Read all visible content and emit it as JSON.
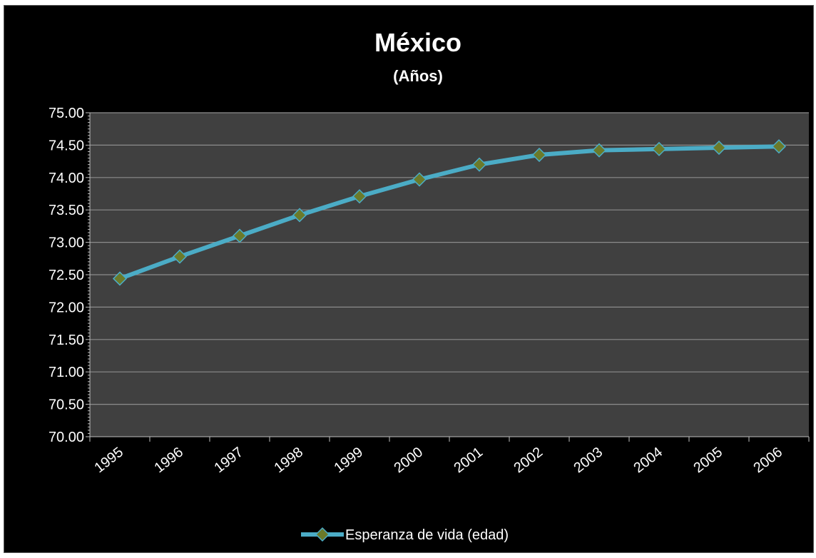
{
  "chart_data": {
    "type": "line",
    "title": "México",
    "subtitle": "(Años)",
    "xlabel": "",
    "ylabel": "",
    "categories": [
      "1995",
      "1996",
      "1997",
      "1998",
      "1999",
      "2000",
      "2001",
      "2002",
      "2003",
      "2004",
      "2005",
      "2006"
    ],
    "series": [
      {
        "name": "Esperanza de vida (edad)",
        "values": [
          72.44,
          72.78,
          73.1,
          73.42,
          73.71,
          73.97,
          74.2,
          74.35,
          74.42,
          74.44,
          74.46,
          74.48
        ],
        "color": "#4bacc6",
        "marker": "diamond",
        "marker_color": "#6b7a2a"
      }
    ],
    "ylim": [
      70.0,
      75.0
    ],
    "y_ticks": [
      "70.00",
      "70.50",
      "71.00",
      "71.50",
      "72.00",
      "72.50",
      "73.00",
      "73.50",
      "74.00",
      "74.50",
      "75.00"
    ],
    "grid": true,
    "legend_position": "bottom",
    "colors": {
      "background": "#000000",
      "plot_area": "#404040",
      "gridline": "#8c8c8c",
      "text": "#ffffff"
    }
  }
}
